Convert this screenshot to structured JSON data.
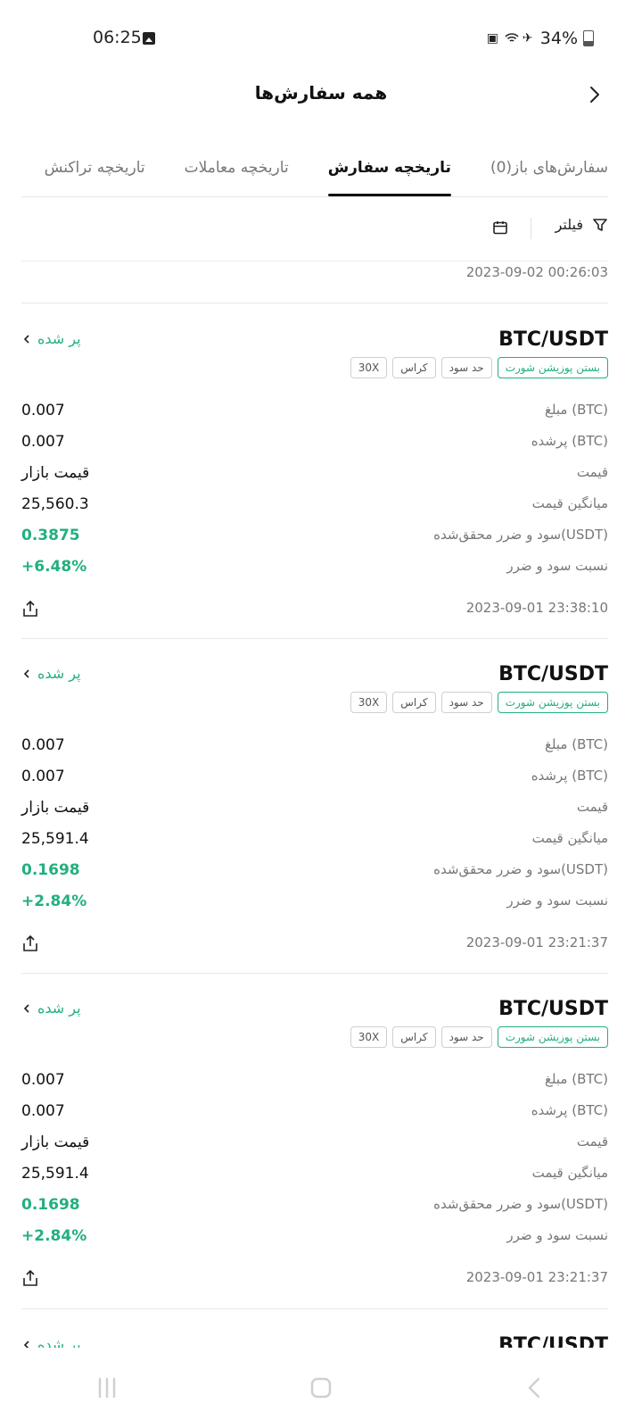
{
  "status_bar": {
    "time": "06:25",
    "battery": "34%"
  },
  "header": {
    "title": "همه سفارش‌ها",
    "back_icon": "chevron-right-icon"
  },
  "tabs": [
    {
      "label": "سفارش‌های باز(0)",
      "active": false
    },
    {
      "label": "تاریخچه سفارش",
      "active": true
    },
    {
      "label": "تاریخچه معاملات",
      "active": false
    },
    {
      "label": "تاریخچه تراکنش",
      "active": false
    }
  ],
  "filters": {
    "filter_label": "فیلتر",
    "filter_icon": "filter-icon",
    "calendar_icon": "calendar-icon"
  },
  "top_timestamp": "2023-09-02 00:26:03",
  "orders": [
    {
      "pair": "BTC/USDT",
      "status": "پر شده",
      "badges": [
        "بستن پوزیشن شورت",
        "حد سود",
        "کراس",
        "30X"
      ],
      "rows": [
        {
          "label": "مبلغ (BTC)",
          "value": "0.007"
        },
        {
          "label": "پرشده (BTC)",
          "value": "0.007"
        },
        {
          "label": "قیمت",
          "value": "قیمت بازار"
        },
        {
          "label": "میانگین قیمت",
          "value": "25,560.3"
        },
        {
          "label": "سود و ضرر محقق‌شده(USDT)",
          "value": "0.3875"
        },
        {
          "label": "نسبت سود و ضرر",
          "value": "+6.48%"
        }
      ],
      "time": "2023-09-01 23:38:10"
    },
    {
      "pair": "BTC/USDT",
      "status": "پر شده",
      "badges": [
        "بستن پوزیشن شورت",
        "حد سود",
        "کراس",
        "30X"
      ],
      "rows": [
        {
          "label": "مبلغ (BTC)",
          "value": "0.007"
        },
        {
          "label": "پرشده (BTC)",
          "value": "0.007"
        },
        {
          "label": "قیمت",
          "value": "قیمت بازار"
        },
        {
          "label": "میانگین قیمت",
          "value": "25,591.4"
        },
        {
          "label": "سود و ضرر محقق‌شده(USDT)",
          "value": "0.1698"
        },
        {
          "label": "نسبت سود و ضرر",
          "value": "+2.84%"
        }
      ],
      "time": "2023-09-01 23:21:37"
    },
    {
      "pair": "BTC/USDT",
      "status": "پر شده",
      "badges": [
        "بستن پوزیشن شورت",
        "حد سود",
        "کراس",
        "30X"
      ],
      "rows": [
        {
          "label": "مبلغ (BTC)",
          "value": "0.007"
        },
        {
          "label": "پرشده (BTC)",
          "value": "0.007"
        },
        {
          "label": "قیمت",
          "value": "قیمت بازار"
        },
        {
          "label": "میانگین قیمت",
          "value": "25,591.4"
        },
        {
          "label": "سود و ضرر محقق‌شده(USDT)",
          "value": "0.1698"
        },
        {
          "label": "نسبت سود و ضرر",
          "value": "+2.84%"
        }
      ],
      "time": "2023-09-01 23:21:37"
    }
  ],
  "partial_order": {
    "pair": "BTC/USDT",
    "status": "پر شده"
  },
  "colors": {
    "accent_green": "#22b07d",
    "text_primary": "#111111",
    "text_secondary": "#777777"
  }
}
